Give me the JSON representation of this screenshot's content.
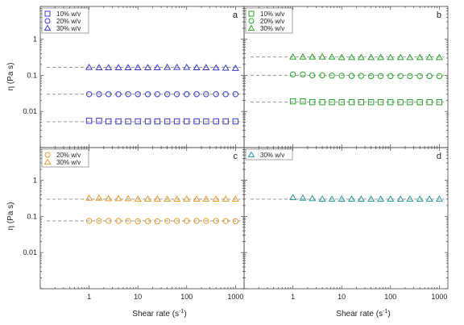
{
  "chart_data": {
    "type": "scatter",
    "xlabel": "Shear rate (s",
    "xlabel_sup": "-1",
    "xlabel_end": ")",
    "ylabel": "η (Pa s)",
    "xscale": "log",
    "yscale": "log",
    "xlim": [
      0.1,
      1500
    ],
    "ylim": [
      0.001,
      8
    ],
    "x_ticks": [
      "1",
      "10",
      "100",
      "1000"
    ],
    "y_ticks": [
      "1",
      "0.1",
      "0.01"
    ],
    "x": [
      1,
      1.6,
      2.5,
      4,
      6.3,
      10,
      16,
      25,
      40,
      63,
      100,
      160,
      250,
      400,
      630,
      1000
    ],
    "panels": [
      {
        "letter": "a",
        "series": [
          {
            "name": "10% w/v",
            "marker": "square",
            "color": "#3a3ad0",
            "fit": 0.0052,
            "values": [
              0.0055,
              0.0055,
              0.0053,
              0.0053,
              0.0053,
              0.0053,
              0.0053,
              0.0053,
              0.0053,
              0.0053,
              0.0053,
              0.0053,
              0.0053,
              0.0053,
              0.0053,
              0.0053
            ]
          },
          {
            "name": "20% w/v",
            "marker": "circle",
            "color": "#3a3ad0",
            "fit": 0.03,
            "values": [
              0.03,
              0.03,
              0.03,
              0.03,
              0.03,
              0.03,
              0.03,
              0.03,
              0.03,
              0.03,
              0.03,
              0.03,
              0.03,
              0.03,
              0.03,
              0.03
            ]
          },
          {
            "name": "30% w/v",
            "marker": "triangle",
            "color": "#3a3ad0",
            "fit": 0.165,
            "values": [
              0.165,
              0.162,
              0.162,
              0.162,
              0.162,
              0.162,
              0.162,
              0.162,
              0.165,
              0.165,
              0.165,
              0.162,
              0.162,
              0.16,
              0.158,
              0.155
            ]
          }
        ]
      },
      {
        "letter": "b",
        "series": [
          {
            "name": "10% w/v",
            "marker": "square",
            "color": "#2aa52a",
            "fit": 0.018,
            "values": [
              0.019,
              0.019,
              0.018,
              0.018,
              0.018,
              0.018,
              0.018,
              0.018,
              0.018,
              0.018,
              0.018,
              0.018,
              0.018,
              0.018,
              0.018,
              0.018
            ]
          },
          {
            "name": "20% w/v",
            "marker": "circle",
            "color": "#2aa52a",
            "fit": 0.1,
            "values": [
              0.105,
              0.105,
              0.1,
              0.1,
              0.098,
              0.097,
              0.096,
              0.096,
              0.095,
              0.095,
              0.095,
              0.095,
              0.095,
              0.095,
              0.095,
              0.095
            ]
          },
          {
            "name": "30% w/v",
            "marker": "triangle",
            "color": "#2aa52a",
            "fit": 0.32,
            "values": [
              0.32,
              0.32,
              0.32,
              0.32,
              0.32,
              0.31,
              0.31,
              0.31,
              0.31,
              0.31,
              0.31,
              0.31,
              0.31,
              0.31,
              0.31,
              0.31
            ]
          }
        ]
      },
      {
        "letter": "c",
        "series": [
          {
            "name": "20% w/v",
            "marker": "circle",
            "color": "#e89a2a",
            "fit": 0.075,
            "values": [
              0.075,
              0.075,
              0.075,
              0.075,
              0.074,
              0.073,
              0.073,
              0.073,
              0.074,
              0.075,
              0.075,
              0.075,
              0.075,
              0.075,
              0.074,
              0.073
            ]
          },
          {
            "name": "30% w/v",
            "marker": "triangle",
            "color": "#e89a2a",
            "fit": 0.3,
            "values": [
              0.32,
              0.32,
              0.31,
              0.31,
              0.31,
              0.3,
              0.3,
              0.3,
              0.3,
              0.3,
              0.3,
              0.3,
              0.3,
              0.3,
              0.3,
              0.3
            ]
          }
        ]
      },
      {
        "letter": "d",
        "series": [
          {
            "name": "30% w/v",
            "marker": "triangle",
            "color": "#2a9a9a",
            "fit": 0.3,
            "values": [
              0.33,
              0.32,
              0.31,
              0.3,
              0.3,
              0.3,
              0.3,
              0.3,
              0.3,
              0.3,
              0.3,
              0.3,
              0.3,
              0.3,
              0.3,
              0.3
            ]
          }
        ]
      }
    ]
  }
}
